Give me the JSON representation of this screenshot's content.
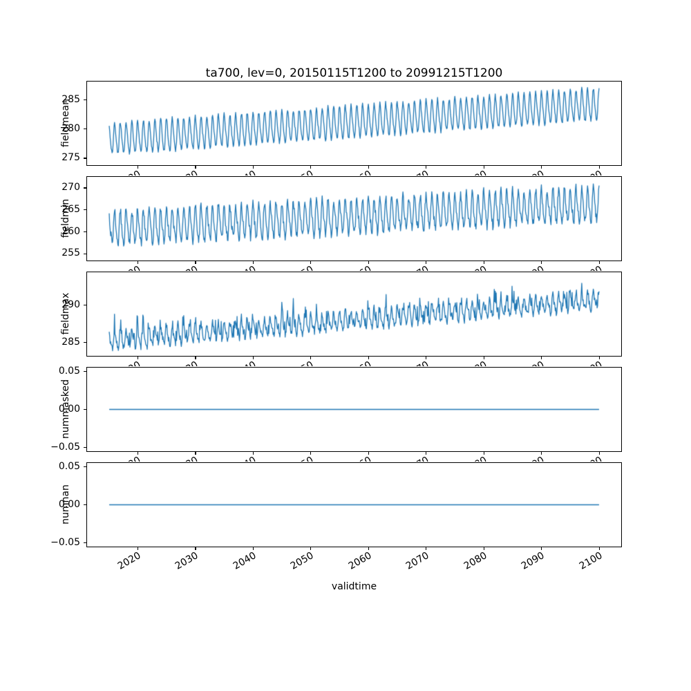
{
  "chart_data": {
    "type": "line",
    "title": "ta700, lev=0, 20150115T1200 to 20991215T1200",
    "xlabel": "validtime",
    "line_color": "#1f77b4",
    "background": "#ffffff",
    "x_start": 2015.04,
    "x_end": 2099.96,
    "points_per_year": 12,
    "xlim": [
      2011.2,
      2103.8
    ],
    "xticks": [
      2020,
      2030,
      2040,
      2050,
      2060,
      2070,
      2080,
      2090,
      2100
    ],
    "xtick_labels": [
      "2020",
      "2030",
      "2040",
      "2050",
      "2060",
      "2070",
      "2080",
      "2090",
      "2100"
    ],
    "xtick_rotation_deg": 30,
    "grid": false,
    "legend": "none",
    "subplots": [
      {
        "ylabel": "fieldmean",
        "ylim": [
          273.8,
          288.2
        ],
        "yticks": [
          275,
          280,
          285
        ],
        "ytick_labels": [
          "275",
          "280",
          "285"
        ],
        "series_summary": "annual oscillation rising from about 275.5-281 in 2015 to about 281.5-287.3 in 2100",
        "model": {
          "kind": "seasonal",
          "base_start": 278.2,
          "base_end": 284.2,
          "amplitude": 2.6,
          "harmonic2": 0.5,
          "noise": 0.35,
          "seed": 7
        }
      },
      {
        "ylabel": "fieldmin",
        "ylim": [
          253.5,
          272.5
        ],
        "yticks": [
          255,
          260,
          265,
          270
        ],
        "ytick_labels": [
          "255",
          "260",
          "265",
          "270"
        ],
        "series_summary": "jagged annual oscillation rising from about 255.3-266 in 2015 to about 261-271.5 in 2100",
        "model": {
          "kind": "seasonal",
          "base_start": 260.8,
          "base_end": 266.2,
          "amplitude": 3.6,
          "harmonic2": 0.9,
          "noise": 1.0,
          "seed": 13
        }
      },
      {
        "ylabel": "fieldmax",
        "ylim": [
          283.2,
          294.4
        ],
        "yticks": [
          285,
          290
        ],
        "ytick_labels": [
          "285",
          "290"
        ],
        "series_summary": "spiky annual oscillation rising from about 284-287.5 in 2015 to about 289-293.5 in 2100",
        "model": {
          "kind": "seasonal",
          "base_start": 285.2,
          "base_end": 290.6,
          "amplitude": 1.1,
          "harmonic2": 0.35,
          "noise": 0.45,
          "spike_prob": 0.12,
          "spike_max": 2.0,
          "seed": 23
        }
      },
      {
        "ylabel": "nummasked",
        "ylim": [
          -0.055,
          0.055
        ],
        "yticks": [
          -0.05,
          0,
          0.05
        ],
        "ytick_labels": [
          "−0.05",
          "0.00",
          "0.05"
        ],
        "series_summary": "constant 0 for the whole period 2015-2100",
        "model": {
          "kind": "constant",
          "value": 0
        }
      },
      {
        "ylabel": "numnan",
        "ylim": [
          -0.055,
          0.055
        ],
        "yticks": [
          -0.05,
          0,
          0.05
        ],
        "ytick_labels": [
          "−0.05",
          "0.00",
          "0.05"
        ],
        "series_summary": "constant 0 for the whole period 2015-2100",
        "model": {
          "kind": "constant",
          "value": 0
        }
      }
    ]
  }
}
